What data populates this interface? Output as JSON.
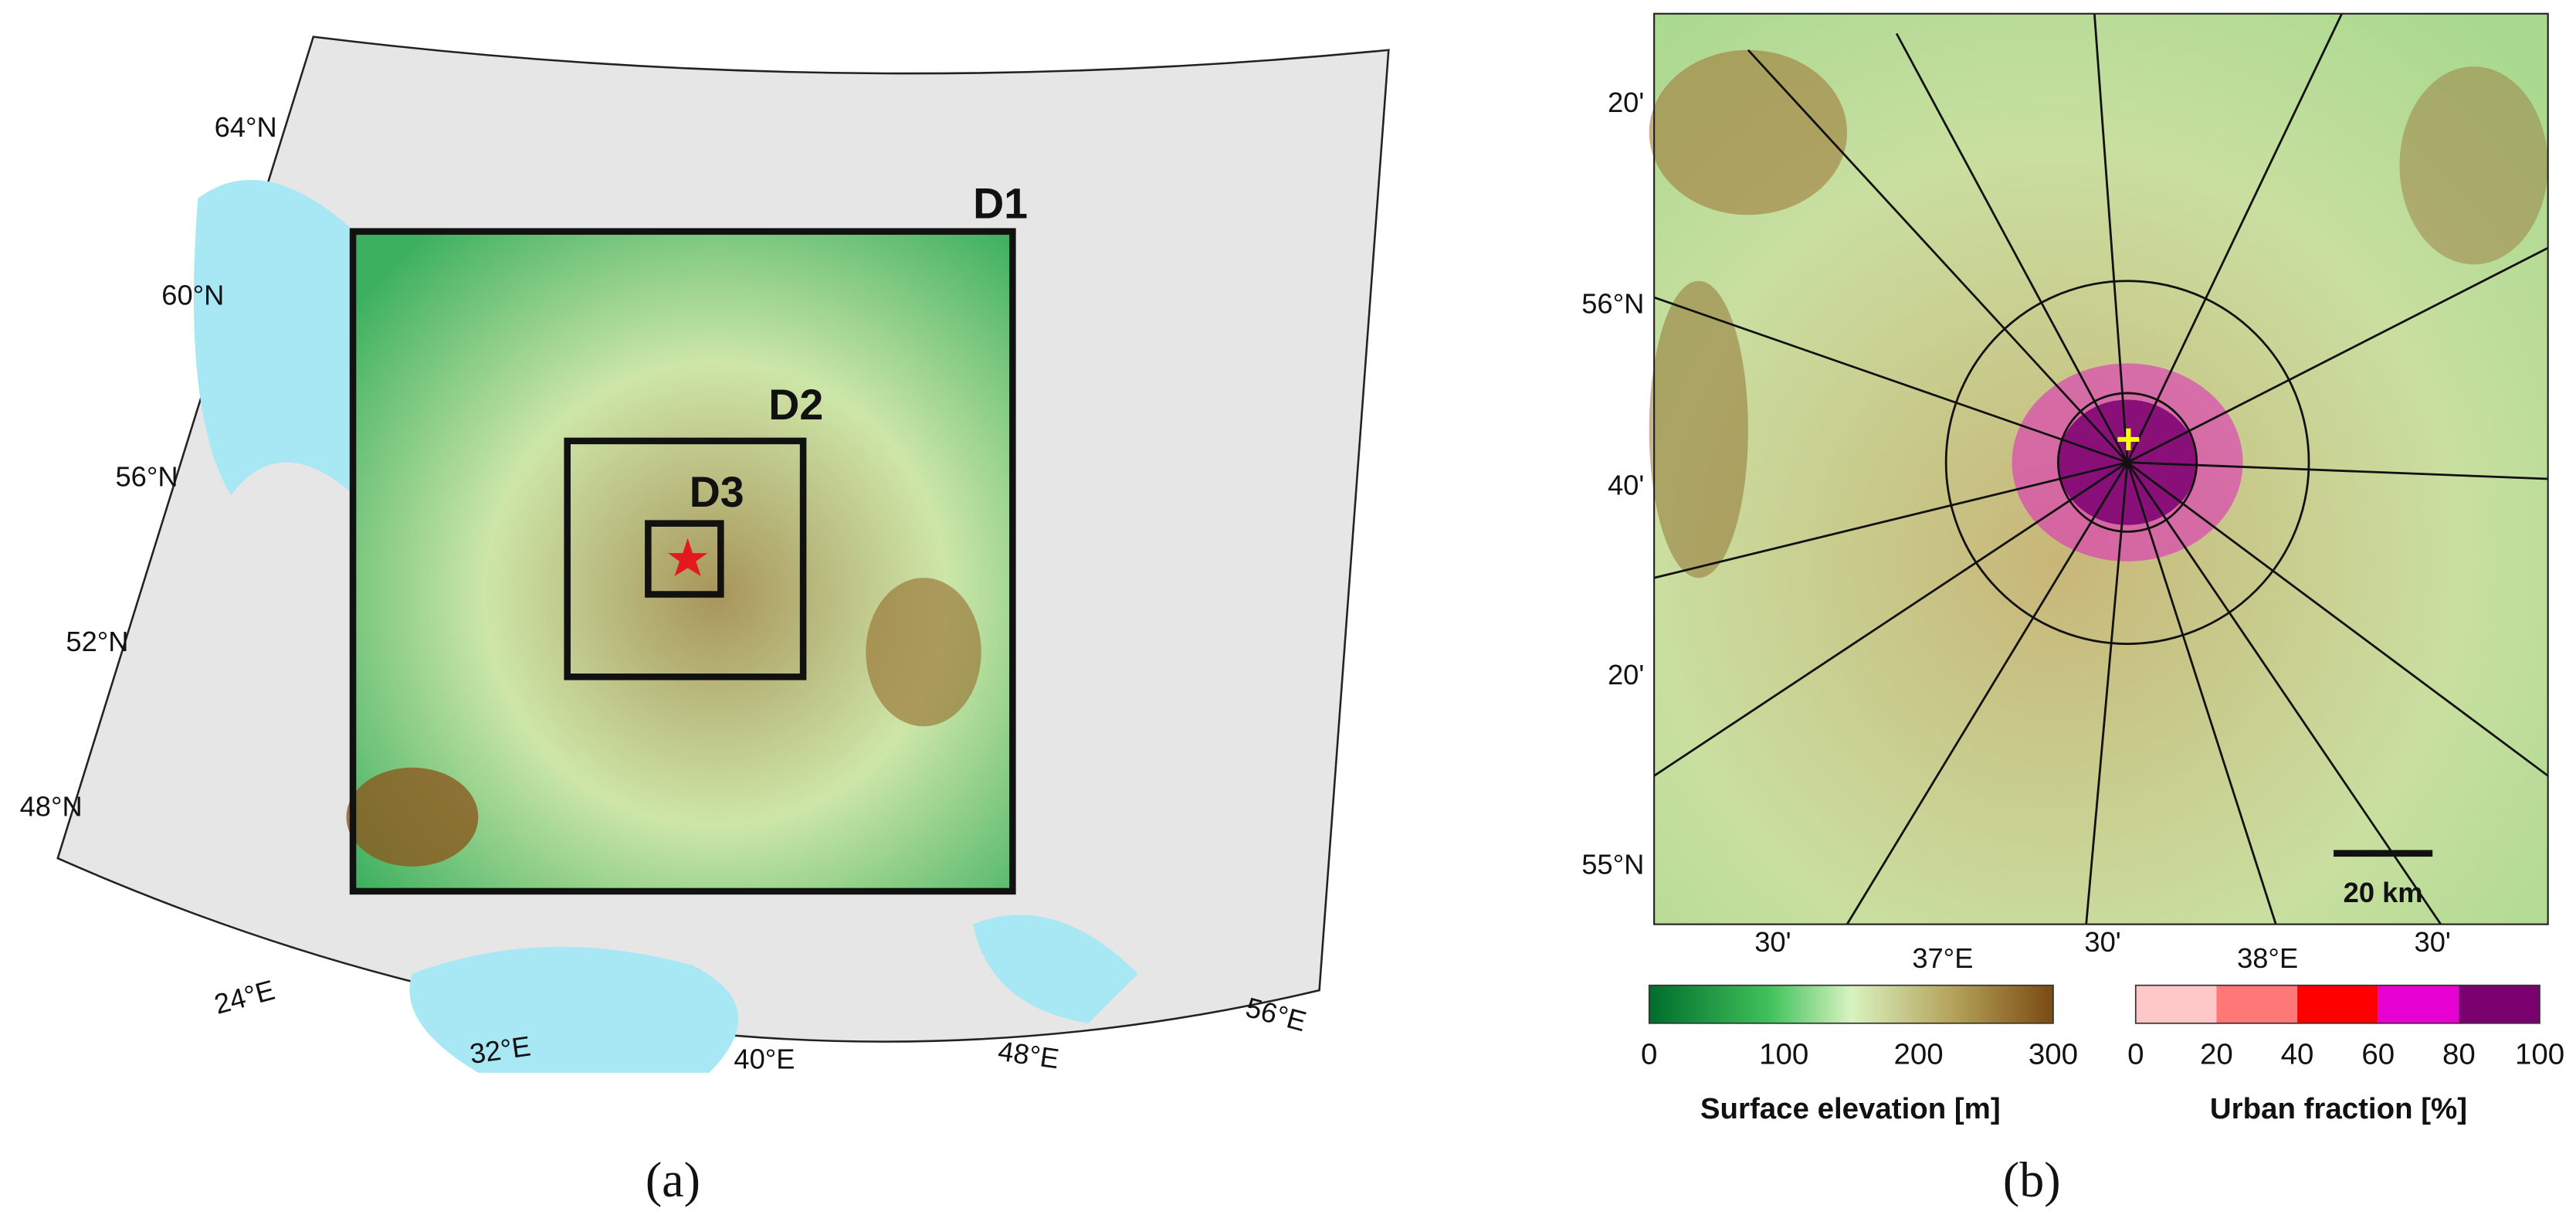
{
  "panel_a": {
    "lat_labels": [
      "64°N",
      "60°N",
      "56°N",
      "52°N",
      "48°N"
    ],
    "lon_labels": [
      "24°E",
      "32°E",
      "40°E",
      "48°E",
      "56°E"
    ],
    "domain_labels": [
      "D1",
      "D2",
      "D3"
    ],
    "caption": "(a)"
  },
  "panel_b": {
    "lat_labels": [
      "20'",
      "56°N",
      "40'",
      "20'",
      "55°N"
    ],
    "lon_labels": [
      "30'",
      "37°E",
      "30'",
      "38°E",
      "30'"
    ],
    "scale_bar": "20 km",
    "elevation_colorbar": {
      "ticks": [
        0,
        100,
        200,
        300
      ],
      "label": "Surface elevation [m]"
    },
    "urban_colorbar": {
      "ticks": [
        0,
        20,
        40,
        60,
        80,
        100
      ],
      "label": "Urban fraction [%]"
    },
    "caption": "(b)"
  }
}
